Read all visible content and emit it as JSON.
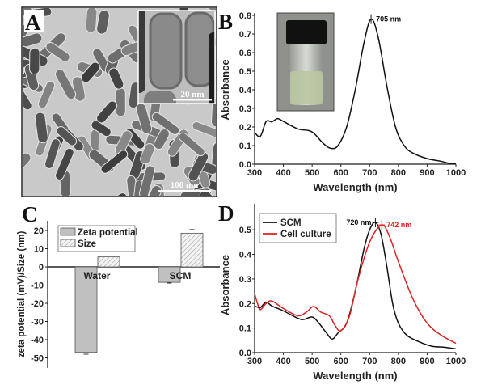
{
  "panels": {
    "A": {
      "label": "A",
      "scale_bar_main": "100 nm",
      "scale_bar_inset": "20 nm"
    },
    "B": {
      "label": "B"
    },
    "C": {
      "label": "C"
    },
    "D": {
      "label": "D"
    }
  },
  "chart_data": [
    {
      "panel": "B",
      "type": "line",
      "xlabel": "Wavelength (nm)",
      "ylabel": "Absorbance",
      "xlim": [
        300,
        1000
      ],
      "ylim": [
        0,
        0.8
      ],
      "xticks": [
        300,
        400,
        500,
        600,
        700,
        800,
        900,
        1000
      ],
      "yticks": [
        "0.0",
        "0.1",
        "0.2",
        "0.3",
        "0.4",
        "0.5",
        "0.6",
        "0.7",
        "0.8"
      ],
      "grid": false,
      "series": [
        {
          "color": "#111111",
          "x": [
            300,
            320,
            340,
            360,
            380,
            400,
            450,
            490,
            510,
            540,
            565,
            590,
            620,
            650,
            680,
            705,
            730,
            760,
            790,
            820,
            850,
            900,
            950,
            975,
            1000
          ],
          "y": [
            0.17,
            0.15,
            0.23,
            0.228,
            0.245,
            0.23,
            0.19,
            0.18,
            0.16,
            0.11,
            0.085,
            0.1,
            0.2,
            0.4,
            0.65,
            0.78,
            0.68,
            0.42,
            0.2,
            0.1,
            0.06,
            0.03,
            0.015,
            0.005,
            0.003
          ]
        }
      ],
      "annotations": [
        {
          "text": "705 nm",
          "x": 705,
          "y": 0.78,
          "color": "#111111"
        }
      ],
      "inset": "photo of vial with pale green solution"
    },
    {
      "panel": "C",
      "type": "bar",
      "ylabel": "zeta potential (mV)/Size (nm)",
      "ylim": [
        -55,
        25
      ],
      "yticks": [
        20,
        10,
        0,
        -10,
        -20,
        -30,
        -40,
        -50
      ],
      "categories": [
        "Water",
        "SCM"
      ],
      "series": [
        {
          "name": "Zeta potential",
          "values": [
            -47,
            -8.5
          ],
          "errors": [
            1,
            0.4
          ],
          "color": "#c0c0c0",
          "pattern": "solid"
        },
        {
          "name": "Size",
          "values": [
            5.5,
            18.5
          ],
          "errors": [
            0,
            2
          ],
          "color": "#ececec",
          "pattern": "hatched"
        }
      ],
      "legend": "top-left"
    },
    {
      "panel": "D",
      "type": "line",
      "xlabel": "Wavelength (nm)",
      "ylabel": "Absorbance",
      "xlim": [
        300,
        1000
      ],
      "ylim": [
        0,
        0.55
      ],
      "xticks": [
        300,
        400,
        500,
        600,
        700,
        800,
        900,
        1000
      ],
      "yticks": [
        "0.0",
        "0.1",
        "0.2",
        "0.3",
        "0.4",
        "0.5"
      ],
      "grid": false,
      "legend": "top-left",
      "series": [
        {
          "name": "SCM",
          "color": "#111111",
          "x": [
            300,
            310,
            320,
            340,
            360,
            400,
            450,
            470,
            500,
            520,
            550,
            570,
            590,
            620,
            650,
            680,
            700,
            720,
            740,
            760,
            780,
            800,
            830,
            880,
            920,
            960,
            1000
          ],
          "y": [
            0.19,
            0.185,
            0.183,
            0.205,
            0.19,
            0.17,
            0.14,
            0.135,
            0.145,
            0.125,
            0.08,
            0.055,
            0.08,
            0.12,
            0.25,
            0.42,
            0.5,
            0.53,
            0.48,
            0.35,
            0.2,
            0.12,
            0.07,
            0.04,
            0.025,
            0.022,
            0.015
          ]
        },
        {
          "name": "Cell culture",
          "color": "#e02020",
          "x": [
            300,
            310,
            320,
            340,
            360,
            400,
            450,
            480,
            505,
            530,
            560,
            580,
            600,
            630,
            660,
            700,
            742,
            770,
            800,
            850,
            900,
            950,
            1000
          ],
          "y": [
            0.24,
            0.2,
            0.175,
            0.2,
            0.21,
            0.18,
            0.15,
            0.165,
            0.188,
            0.165,
            0.15,
            0.11,
            0.09,
            0.15,
            0.3,
            0.45,
            0.52,
            0.47,
            0.37,
            0.22,
            0.12,
            0.07,
            0.038
          ]
        }
      ],
      "annotations": [
        {
          "text": "720 nm",
          "x": 720,
          "y": 0.53,
          "color": "#111111"
        },
        {
          "text": "742 nm",
          "x": 742,
          "y": 0.52,
          "color": "#e02020"
        }
      ]
    }
  ]
}
